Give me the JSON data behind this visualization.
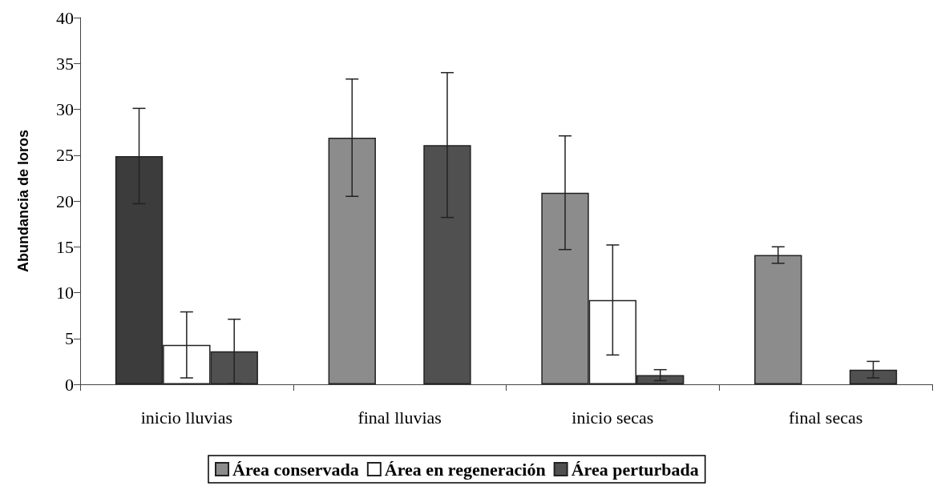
{
  "chart_data": {
    "type": "bar",
    "categories": [
      "inicio lluvias",
      "final lluvias",
      "inicio secas",
      "final secas"
    ],
    "ylabel": "Abundancia de loros",
    "ylim": [
      0,
      40
    ],
    "yticks": [
      0,
      5,
      10,
      15,
      20,
      25,
      30,
      35,
      40
    ],
    "grid": false,
    "legend": "bottom",
    "series": [
      {
        "name": "Área conservada",
        "color": "#8c8c8c",
        "colors": [
          "#3c3c3c",
          "#8c8c8c",
          "#8c8c8c",
          "#8c8c8c"
        ],
        "values": [
          24.9,
          26.9,
          20.9,
          14.1
        ],
        "errors": [
          5.2,
          6.4,
          6.2,
          0.9
        ]
      },
      {
        "name": "Área en regeneración",
        "color": "#ffffff",
        "values": [
          4.3,
          0,
          9.2,
          0
        ],
        "errors": [
          3.6,
          null,
          6.0,
          null
        ]
      },
      {
        "name": "Área perturbada",
        "color": "#505050",
        "values": [
          3.6,
          26.1,
          1.0,
          1.6
        ],
        "errors": [
          3.5,
          7.9,
          0.6,
          0.9
        ]
      }
    ]
  }
}
